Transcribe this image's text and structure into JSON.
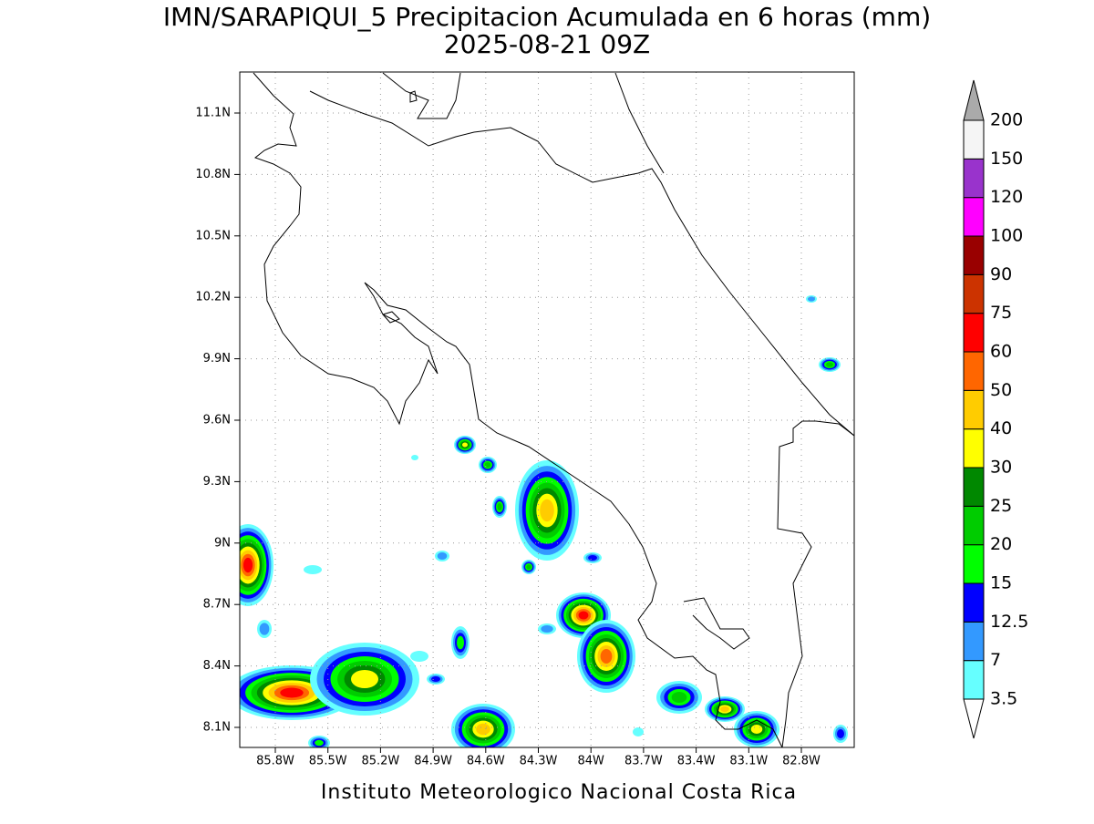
{
  "title": "IMN/SARAPIQUI_5 Precipitacion Acumulada en 6 horas (mm)",
  "subtitle": "2025-08-21 09Z",
  "footer": "Instituto Meteorologico Nacional Costa Rica",
  "map": {
    "lon_ticks": [
      "85.8W",
      "85.5W",
      "85.2W",
      "84.9W",
      "84.6W",
      "84.3W",
      "84W",
      "83.7W",
      "83.4W",
      "83.1W",
      "82.8W"
    ],
    "lat_ticks": [
      "11.1N",
      "10.8N",
      "10.5N",
      "10.2N",
      "9.9N",
      "9.6N",
      "9.3N",
      "9N",
      "8.7N",
      "8.4N",
      "8.1N"
    ],
    "grid": true
  },
  "colorbar": {
    "labels": [
      "3.5",
      "7",
      "12.5",
      "15",
      "20",
      "25",
      "30",
      "40",
      "50",
      "60",
      "75",
      "90",
      "100",
      "120",
      "150",
      "200"
    ],
    "band_colors": [
      "#66ffff",
      "#3399ff",
      "#0000ff",
      "#00ff00",
      "#00cc00",
      "#008800",
      "#ffff00",
      "#ffcc00",
      "#ff6600",
      "#ff0000",
      "#cc3300",
      "#990000",
      "#ff00ff",
      "#9933cc",
      "#f5f5f5"
    ],
    "below_color": "#ffffff",
    "above_color": "#aaaaaa"
  }
}
